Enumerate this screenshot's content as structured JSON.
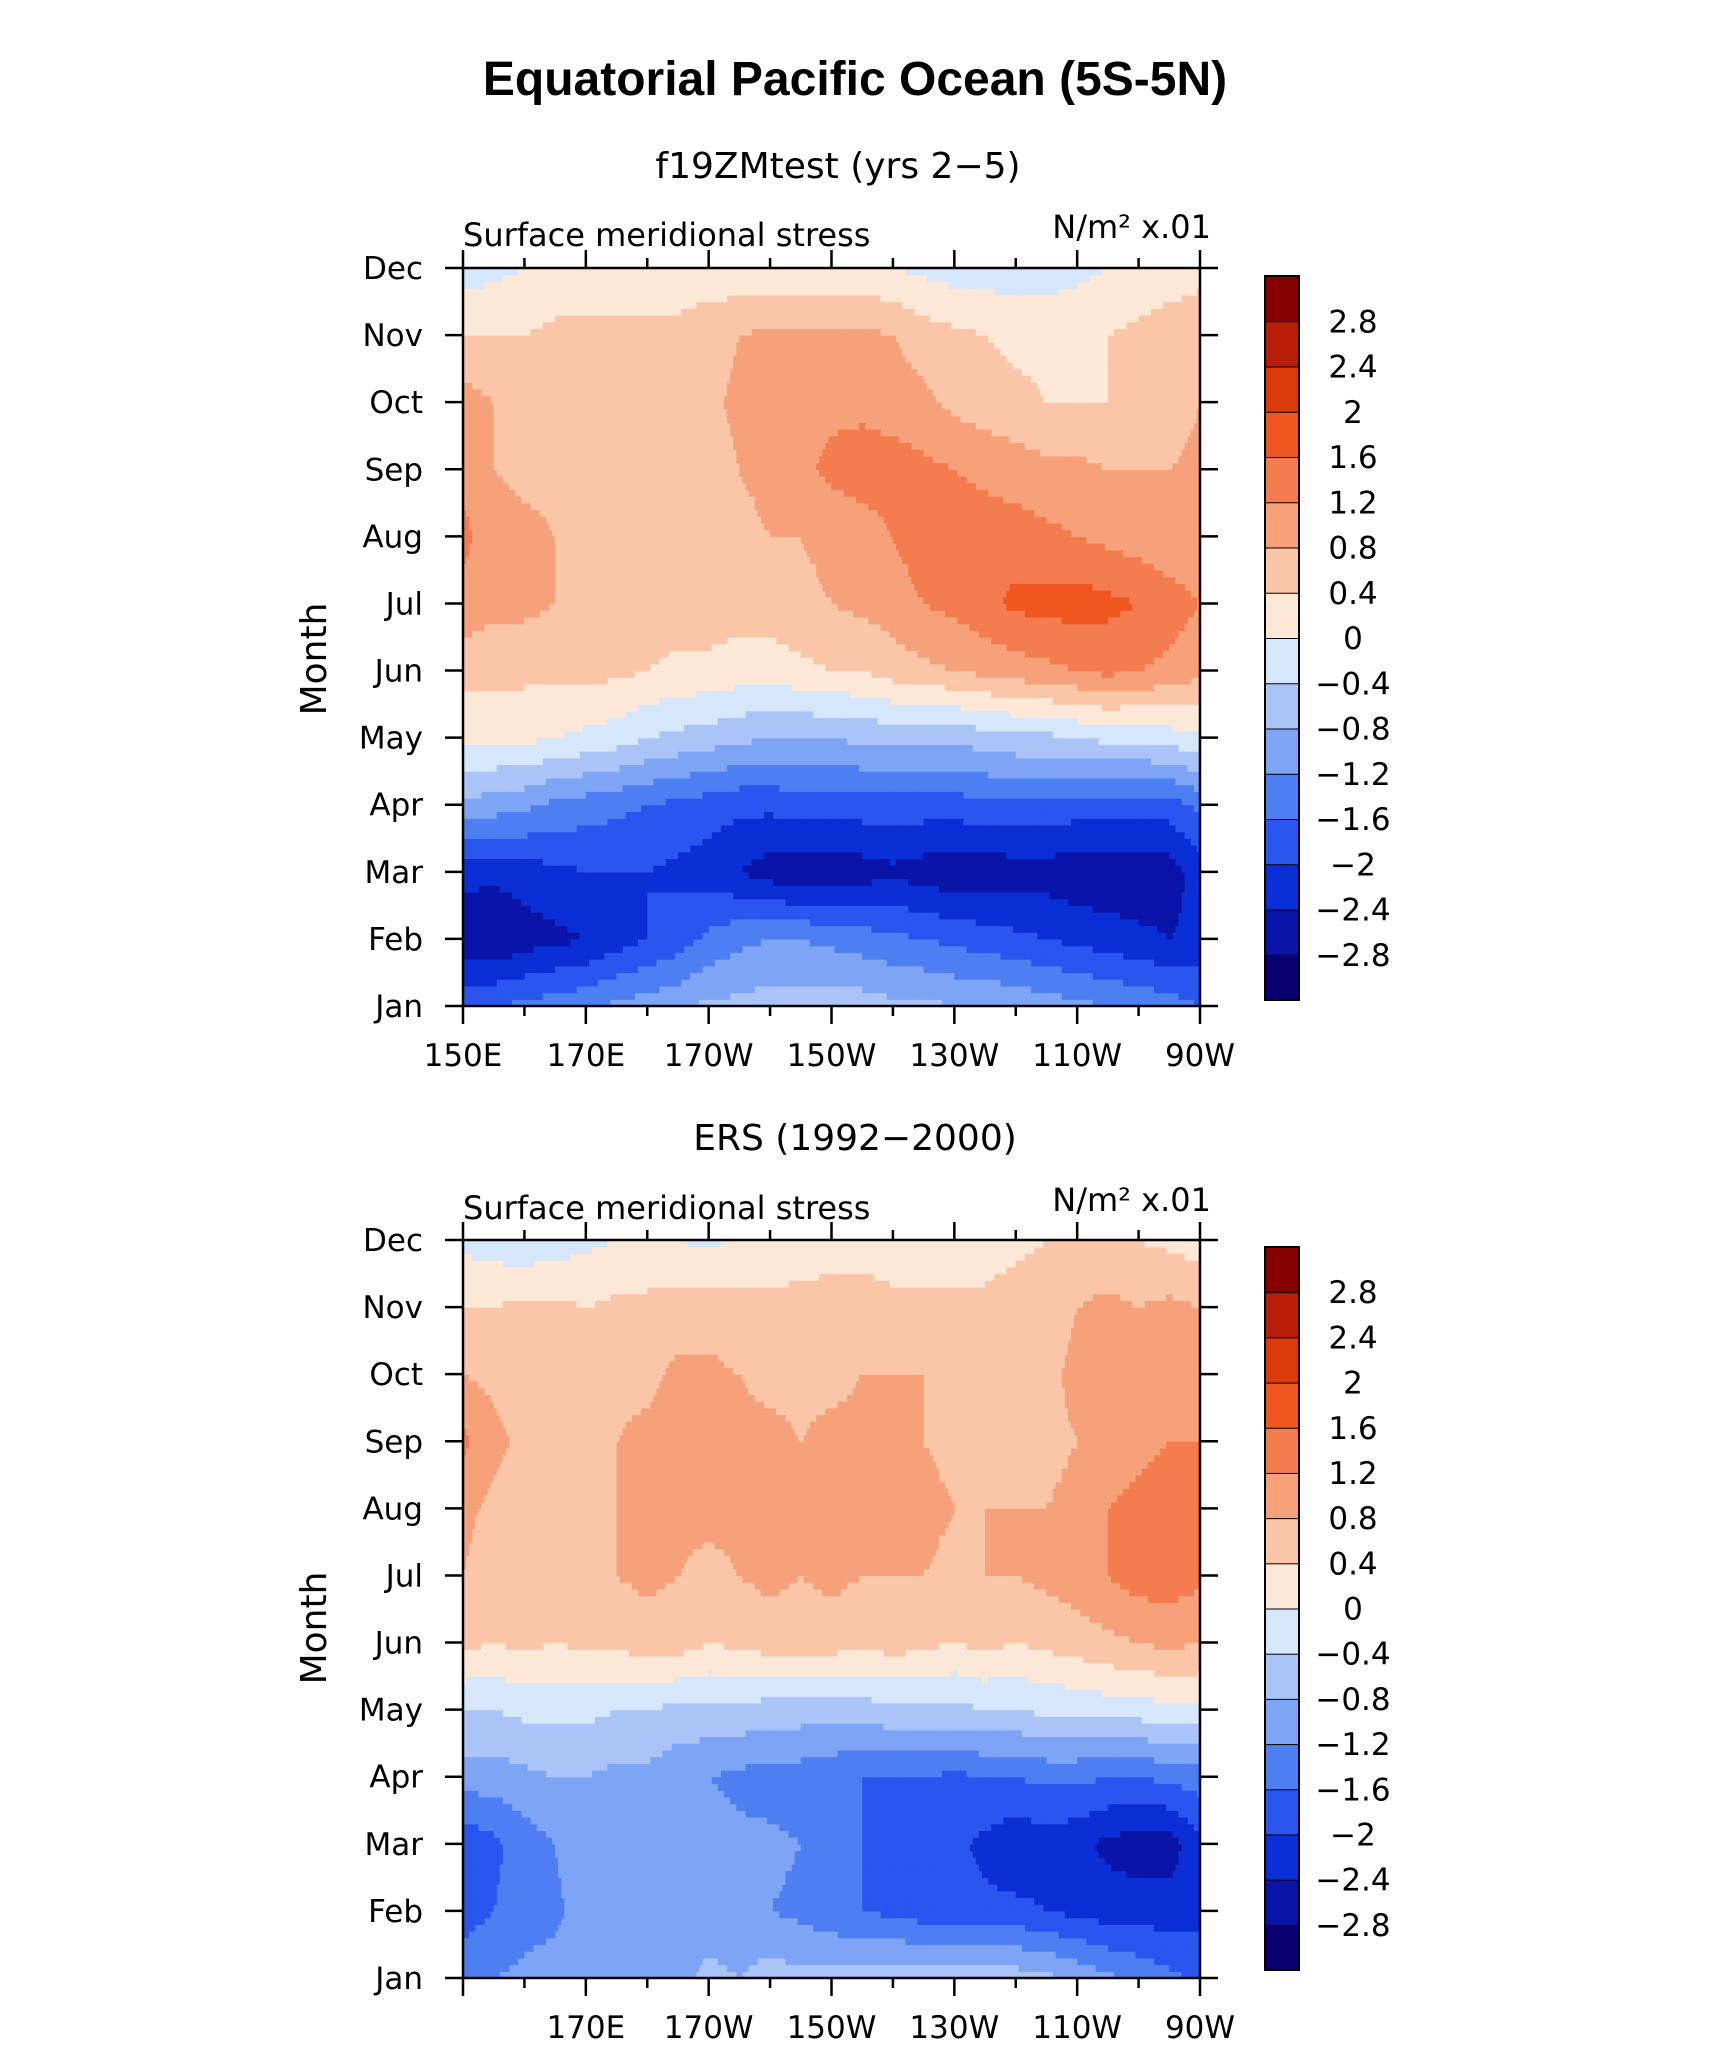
{
  "figure": {
    "title": "Equatorial Pacific Ocean (5S-5N)"
  },
  "colors": {
    "levels": [
      "#08006e",
      "#0a14a8",
      "#0b2fd6",
      "#2a55ee",
      "#4e7ff2",
      "#7ea4f5",
      "#aac4f8",
      "#d6e6fb",
      "#fde8d8",
      "#fbc6a8",
      "#f7a17b",
      "#f47c4e",
      "#f05620",
      "#dd3a0c",
      "#b81e06",
      "#870000"
    ]
  },
  "chart_data": [
    {
      "type": "heatmap",
      "title": "f19ZMtest (yrs 2−5)",
      "left_label": "Surface meridional stress",
      "right_label": "N/m² x.01",
      "ylabel": "Month",
      "y_ticks": [
        "Jan",
        "Feb",
        "Mar",
        "Apr",
        "May",
        "Jun",
        "Jul",
        "Aug",
        "Sep",
        "Oct",
        "Nov",
        "Dec"
      ],
      "x_ticks": [
        "150E",
        "170E",
        "170W",
        "150W",
        "130W",
        "110W",
        "90W"
      ],
      "x_longitudes_deg_east": [
        150,
        155,
        160,
        165,
        170,
        175,
        180,
        185,
        190,
        195,
        200,
        205,
        210,
        215,
        220,
        225,
        230,
        235,
        240,
        245,
        250,
        255,
        260,
        265,
        270
      ],
      "colorbar_labels": [
        "2.8",
        "2.4",
        "2",
        "1.6",
        "1.2",
        "0.8",
        "0.4",
        "0",
        "−0.4",
        "−0.8",
        "−1.2",
        "−1.6",
        "−2",
        "−2.4",
        "−2.8"
      ],
      "z": [
        [
          -1.8,
          -1.6,
          -1.5,
          -1.4,
          -1.3,
          -1.1,
          -1.0,
          -0.9,
          -0.7,
          -0.7,
          -0.6,
          -0.6,
          -0.6,
          -0.6,
          -0.7,
          -0.7,
          -0.8,
          -0.8,
          -0.9,
          -1.0,
          -1.1,
          -1.2,
          -1.3,
          -1.4,
          -1.6
        ],
        [
          -2.6,
          -2.8,
          -2.6,
          -2.5,
          -2.4,
          -2.2,
          -2.0,
          -1.8,
          -1.5,
          -1.3,
          -1.2,
          -1.2,
          -1.3,
          -1.4,
          -1.5,
          -1.6,
          -1.7,
          -1.8,
          -1.9,
          -2.0,
          -2.1,
          -2.2,
          -2.3,
          -2.4,
          -2.3
        ],
        [
          -2.3,
          -2.3,
          -2.2,
          -2.1,
          -2.0,
          -2.0,
          -2.0,
          -2.1,
          -2.2,
          -2.4,
          -2.6,
          -2.7,
          -2.7,
          -2.6,
          -2.5,
          -2.6,
          -2.7,
          -2.7,
          -2.6,
          -2.6,
          -2.7,
          -2.7,
          -2.7,
          -2.6,
          -2.2
        ],
        [
          -0.9,
          -1.0,
          -1.1,
          -1.3,
          -1.4,
          -1.5,
          -1.6,
          -1.7,
          -1.8,
          -1.9,
          -1.9,
          -1.8,
          -1.8,
          -1.8,
          -1.8,
          -1.8,
          -1.8,
          -1.7,
          -1.7,
          -1.7,
          -1.8,
          -1.8,
          -1.8,
          -1.8,
          -1.5
        ],
        [
          0.1,
          0.1,
          0.1,
          0.0,
          -0.1,
          -0.2,
          -0.4,
          -0.5,
          -0.6,
          -0.7,
          -0.8,
          -0.8,
          -0.8,
          -0.7,
          -0.7,
          -0.7,
          -0.7,
          -0.6,
          -0.5,
          -0.5,
          -0.4,
          -0.3,
          -0.3,
          -0.2,
          -0.1
        ],
        [
          0.5,
          0.5,
          0.5,
          0.5,
          0.5,
          0.5,
          0.4,
          0.3,
          0.3,
          0.2,
          0.2,
          0.3,
          0.4,
          0.4,
          0.6,
          0.7,
          0.8,
          0.9,
          1.0,
          1.1,
          1.2,
          1.3,
          1.2,
          1.1,
          0.9
        ],
        [
          1.1,
          0.9,
          0.9,
          0.8,
          0.7,
          0.7,
          0.6,
          0.6,
          0.6,
          0.6,
          0.6,
          0.7,
          0.8,
          0.9,
          1.0,
          1.2,
          1.3,
          1.5,
          1.7,
          1.7,
          1.8,
          1.7,
          1.6,
          1.4,
          1.2
        ],
        [
          1.3,
          1.0,
          0.9,
          0.8,
          0.7,
          0.7,
          0.7,
          0.7,
          0.7,
          0.7,
          0.8,
          0.8,
          0.9,
          1.0,
          1.2,
          1.4,
          1.4,
          1.4,
          1.4,
          1.3,
          1.2,
          1.1,
          1.0,
          0.9,
          0.9
        ],
        [
          1.1,
          0.8,
          0.7,
          0.7,
          0.6,
          0.6,
          0.6,
          0.6,
          0.6,
          0.8,
          0.9,
          1.1,
          1.3,
          1.4,
          1.4,
          1.3,
          1.2,
          1.1,
          1.0,
          0.9,
          0.9,
          0.8,
          0.8,
          0.8,
          0.9
        ],
        [
          1.0,
          0.8,
          0.6,
          0.6,
          0.5,
          0.5,
          0.6,
          0.6,
          0.7,
          0.9,
          1.0,
          1.1,
          1.1,
          1.1,
          1.0,
          0.9,
          0.7,
          0.6,
          0.5,
          0.4,
          0.4,
          0.4,
          0.5,
          0.6,
          0.8
        ],
        [
          0.4,
          0.4,
          0.4,
          0.5,
          0.5,
          0.5,
          0.5,
          0.5,
          0.6,
          0.8,
          0.9,
          0.9,
          0.9,
          0.9,
          0.8,
          0.6,
          0.5,
          0.4,
          0.3,
          0.3,
          0.3,
          0.4,
          0.5,
          0.6,
          0.6
        ],
        [
          -0.2,
          -0.1,
          0.0,
          0.1,
          0.2,
          0.2,
          0.2,
          0.2,
          0.2,
          0.1,
          0.1,
          0.1,
          0.1,
          0.1,
          0.0,
          -0.1,
          -0.2,
          -0.2,
          -0.2,
          -0.2,
          -0.1,
          0.0,
          0.1,
          0.2,
          0.3
        ]
      ]
    },
    {
      "type": "heatmap",
      "title": "ERS (1992−2000)",
      "left_label": "Surface meridional stress",
      "right_label": "N/m² x.01",
      "ylabel": "Month",
      "y_ticks": [
        "Jan",
        "Feb",
        "Mar",
        "Apr",
        "May",
        "Jun",
        "Jul",
        "Aug",
        "Sep",
        "Oct",
        "Nov",
        "Dec"
      ],
      "x_ticks": [
        "170E",
        "170W",
        "150W",
        "130W",
        "110W",
        "90W"
      ],
      "x_longitudes_deg_east": [
        150,
        155,
        160,
        165,
        170,
        175,
        180,
        185,
        190,
        195,
        200,
        205,
        210,
        215,
        220,
        225,
        230,
        235,
        240,
        245,
        250,
        255,
        260,
        265,
        270
      ],
      "colorbar_labels": [
        "2.8",
        "2.4",
        "2",
        "1.6",
        "1.2",
        "0.8",
        "0.4",
        "0",
        "−0.4",
        "−0.8",
        "−1.2",
        "−1.6",
        "−2",
        "−2.4",
        "−2.8"
      ],
      "z": [
        [
          -1.3,
          -1.2,
          -1.1,
          -1.0,
          -0.9,
          -1.0,
          -0.8,
          -0.9,
          -0.7,
          -0.8,
          -0.6,
          -0.7,
          -0.6,
          -0.6,
          -0.5,
          -0.6,
          -0.5,
          -0.6,
          -0.6,
          -0.7,
          -0.9,
          -1.1,
          -1.3,
          -1.5,
          -1.7
        ],
        [
          -1.8,
          -1.6,
          -1.4,
          -1.3,
          -1.0,
          -1.2,
          -0.9,
          -1.0,
          -1.0,
          -1.1,
          -1.2,
          -1.3,
          -1.5,
          -1.6,
          -1.7,
          -1.8,
          -1.8,
          -1.9,
          -1.9,
          -2.0,
          -2.1,
          -2.2,
          -2.2,
          -2.2,
          -2.1
        ],
        [
          -1.9,
          -1.7,
          -1.4,
          -1.2,
          -0.8,
          -1.1,
          -0.9,
          -1.0,
          -1.0,
          -1.1,
          -1.1,
          -1.2,
          -1.4,
          -1.6,
          -1.7,
          -1.8,
          -1.9,
          -2.1,
          -2.3,
          -2.2,
          -2.3,
          -2.5,
          -2.6,
          -2.6,
          -2.1
        ],
        [
          -1.0,
          -1.0,
          -0.9,
          -0.8,
          -0.8,
          -0.9,
          -0.9,
          -1.1,
          -1.2,
          -1.3,
          -1.4,
          -1.4,
          -1.5,
          -1.6,
          -1.6,
          -1.6,
          -1.7,
          -1.6,
          -1.6,
          -1.5,
          -1.5,
          -1.6,
          -1.6,
          -1.5,
          -1.4
        ],
        [
          -0.4,
          -0.4,
          -0.3,
          -0.3,
          -0.3,
          -0.4,
          -0.4,
          -0.5,
          -0.5,
          -0.5,
          -0.6,
          -0.6,
          -0.6,
          -0.6,
          -0.5,
          -0.5,
          -0.5,
          -0.4,
          -0.4,
          -0.3,
          -0.3,
          -0.2,
          -0.2,
          -0.1,
          -0.1
        ],
        [
          0.5,
          0.4,
          0.5,
          0.4,
          0.5,
          0.5,
          0.6,
          0.6,
          0.4,
          0.5,
          0.6,
          0.6,
          0.6,
          0.5,
          0.6,
          0.5,
          0.4,
          0.5,
          0.4,
          0.5,
          0.6,
          0.7,
          0.8,
          0.9,
          0.8
        ],
        [
          0.8,
          0.6,
          0.7,
          0.6,
          0.7,
          0.8,
          0.9,
          0.8,
          0.7,
          0.8,
          0.9,
          0.8,
          0.9,
          0.8,
          0.8,
          0.8,
          0.7,
          0.8,
          0.8,
          0.9,
          1.0,
          1.2,
          1.4,
          1.4,
          1.3
        ],
        [
          0.9,
          0.7,
          0.6,
          0.7,
          0.6,
          0.8,
          0.9,
          0.9,
          0.9,
          0.9,
          0.9,
          0.8,
          0.9,
          0.9,
          0.9,
          0.9,
          0.8,
          0.8,
          0.8,
          0.8,
          0.9,
          1.2,
          1.3,
          1.4,
          1.3
        ],
        [
          1.3,
          0.9,
          0.7,
          0.6,
          0.7,
          0.8,
          0.9,
          1.0,
          1.0,
          0.9,
          0.9,
          0.8,
          0.9,
          0.9,
          0.9,
          0.8,
          0.7,
          0.7,
          0.7,
          0.7,
          0.8,
          1.0,
          1.1,
          1.2,
          1.2
        ],
        [
          0.8,
          0.7,
          0.6,
          0.6,
          0.6,
          0.7,
          0.7,
          0.9,
          0.9,
          0.8,
          0.7,
          0.7,
          0.7,
          0.8,
          0.8,
          0.8,
          0.7,
          0.6,
          0.6,
          0.7,
          0.9,
          0.9,
          0.9,
          1.0,
          1.2
        ],
        [
          0.4,
          0.4,
          0.5,
          0.5,
          0.4,
          0.5,
          0.5,
          0.6,
          0.6,
          0.5,
          0.5,
          0.6,
          0.6,
          0.6,
          0.5,
          0.5,
          0.5,
          0.5,
          0.6,
          0.6,
          0.8,
          0.9,
          0.8,
          0.9,
          0.8
        ],
        [
          -0.1,
          -0.2,
          -0.3,
          -0.2,
          -0.1,
          0.0,
          0.1,
          0.0,
          -0.1,
          0.1,
          0.1,
          0.1,
          0.2,
          0.2,
          0.2,
          0.1,
          0.2,
          0.2,
          0.3,
          0.4,
          0.5,
          0.5,
          0.4,
          0.3,
          0.2
        ]
      ]
    }
  ]
}
